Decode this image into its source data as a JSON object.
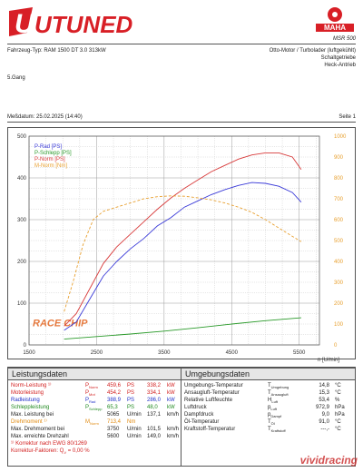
{
  "header": {
    "logo_left_text": "UTUNED",
    "logo_right_text": "MAHA",
    "device_model": "MSR 500",
    "vehicle_type": "Fahrzeug-Typ: RAM 1500 DT 3.0 313kW",
    "engine_line1": "Otto-Motor / Turbolader (luftgekühlt)",
    "engine_line2": "Schaltgetriebe",
    "engine_line3": "Heck-Antrieb",
    "gear": "5.Gang",
    "measure_date": "Meßdatum: 25.02.2025 (14:40)",
    "page": "Seite 1"
  },
  "chart_data": {
    "type": "line",
    "xlabel": "n [U/min]",
    "x_ticks": [
      1500,
      2500,
      3500,
      4500,
      5500
    ],
    "xlim": [
      1500,
      5800
    ],
    "left_ticks": [
      0,
      100,
      200,
      300,
      400,
      500
    ],
    "ylim_left": [
      0,
      500
    ],
    "right_ticks": [
      0,
      100,
      200,
      300,
      400,
      500,
      600,
      700,
      800,
      900,
      1000
    ],
    "ylim_right": [
      0,
      1000
    ],
    "grid": true,
    "legend_position": "top-left",
    "watermark": "RACE CHIP",
    "series": [
      {
        "name": "P-Rad [PS]",
        "axis": "left",
        "color": "#3a3ad8",
        "dash": "",
        "x": [
          2020,
          2200,
          2400,
          2600,
          2800,
          3000,
          3200,
          3400,
          3600,
          3800,
          4000,
          4200,
          4400,
          4600,
          4800,
          5000,
          5200,
          5400,
          5530
        ],
        "y": [
          35,
          55,
          110,
          165,
          200,
          230,
          255,
          285,
          305,
          330,
          345,
          360,
          372,
          382,
          389,
          387,
          380,
          365,
          342
        ]
      },
      {
        "name": "P-Schlepp [PS]",
        "axis": "left",
        "color": "#2a9a2a",
        "dash": "",
        "x": [
          2020,
          2500,
          3000,
          3500,
          4000,
          4500,
          5000,
          5530
        ],
        "y": [
          14,
          20,
          26,
          33,
          41,
          50,
          58,
          65
        ]
      },
      {
        "name": "P-Norm [PS]",
        "axis": "left",
        "color": "#d83a3a",
        "dash": "",
        "x": [
          2020,
          2200,
          2400,
          2600,
          2800,
          3000,
          3200,
          3400,
          3600,
          3800,
          4000,
          4200,
          4400,
          4600,
          4800,
          5000,
          5200,
          5400,
          5530
        ],
        "y": [
          45,
          75,
          135,
          195,
          235,
          265,
          295,
          325,
          352,
          375,
          395,
          415,
          430,
          445,
          455,
          460,
          460,
          450,
          420
        ]
      },
      {
        "name": "M-Norm [Nm]",
        "axis": "right",
        "color": "#e8a030",
        "dash": "3,2",
        "x": [
          2020,
          2150,
          2300,
          2450,
          2600,
          2800,
          3000,
          3200,
          3400,
          3600,
          3800,
          4000,
          4200,
          4400,
          4600,
          4800,
          5000,
          5200,
          5400,
          5530
        ],
        "y": [
          160,
          300,
          480,
          600,
          640,
          660,
          680,
          700,
          710,
          714,
          712,
          705,
          695,
          680,
          660,
          635,
          600,
          560,
          520,
          495
        ]
      }
    ]
  },
  "performance": {
    "title": "Leistungsdaten",
    "rows": [
      {
        "label": "Norm-Leistung ¹⁾",
        "sym": "P",
        "sub": "Norm",
        "v1": "459,6",
        "u1": "PS",
        "v2": "338,2",
        "u2": "kW",
        "cls": "red"
      },
      {
        "label": "Motorleistung",
        "sym": "P",
        "sub": "Mot",
        "v1": "454,2",
        "u1": "PS",
        "v2": "334,1",
        "u2": "kW",
        "cls": "red"
      },
      {
        "label": "Radleistung",
        "sym": "P",
        "sub": "Rad",
        "v1": "388,9",
        "u1": "PS",
        "v2": "286,0",
        "u2": "kW",
        "cls": "blue"
      },
      {
        "label": "Schleppleistung",
        "sym": "P",
        "sub": "Schlepp",
        "v1": "65,3",
        "u1": "PS",
        "v2": "48,0",
        "u2": "kW",
        "cls": "green"
      },
      {
        "label": "Max. Leistung bei",
        "sym": "",
        "sub": "",
        "v1": "5065",
        "u1": "U/min",
        "v2": "137,1",
        "u2": "km/h",
        "cls": ""
      },
      {
        "label": "Drehmoment ¹⁾",
        "sym": "M",
        "sub": "Norm",
        "v1": "713,4",
        "u1": "Nm",
        "v2": "",
        "u2": "",
        "cls": "orange"
      },
      {
        "label": "Max. Drehmoment bei",
        "sym": "",
        "sub": "",
        "v1": "3750",
        "u1": "U/min",
        "v2": "101,5",
        "u2": "km/h",
        "cls": ""
      },
      {
        "label": "Max. erreichte Drehzahl",
        "sym": "",
        "sub": "",
        "v1": "5600",
        "u1": "U/min",
        "v2": "149,0",
        "u2": "km/h",
        "cls": ""
      }
    ],
    "footnote": "¹⁾ Korrektur nach EWG 80/1269",
    "correction": "Korrektur-Faktoren: Q",
    "correction_sub": "V",
    "correction_value": "= 0,00 %"
  },
  "environment": {
    "title": "Umgebungsdaten",
    "rows": [
      {
        "label": "Umgebungs-Temperatur",
        "sym": "T",
        "sub": "Umgebung",
        "val": "14,8",
        "unit": "°C"
      },
      {
        "label": "Ansaugluft-Temperatur",
        "sym": "T",
        "sub": "Ansaugluft",
        "val": "15,3",
        "unit": "°C"
      },
      {
        "label": "Relative Luftfeuchte",
        "sym": "H",
        "sub": "Luft",
        "val": "53,4",
        "unit": "%"
      },
      {
        "label": "Luftdruck",
        "sym": "p",
        "sub": "Luft",
        "val": "972,9",
        "unit": "hPa"
      },
      {
        "label": "Dampfdruck",
        "sym": "p",
        "sub": "Dampf",
        "val": "9,0",
        "unit": "hPa"
      },
      {
        "label": "Öl-Temperatur",
        "sym": "T",
        "sub": "Öl",
        "val": "91,0",
        "unit": "°C"
      },
      {
        "label": "Kraftstoff-Temperatur",
        "sym": "T",
        "sub": "Kraftstoff",
        "val": "---,-",
        "unit": "°C"
      }
    ]
  },
  "watermark_text": "vividracing"
}
